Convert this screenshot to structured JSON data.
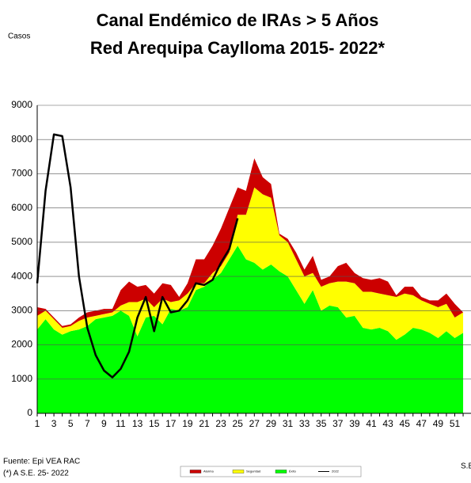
{
  "chart_data": {
    "type": "area",
    "title": [
      "Canal Endémico de IRAs > 5 Años",
      "Red Arequipa Caylloma 2015- 2022*"
    ],
    "y_label": "Casos",
    "x_label": "S.E",
    "source": "Fuente: Epi VEA RAC",
    "note": "(*) A S.E. 25- 2022",
    "categories": [
      1,
      null,
      3,
      null,
      5,
      null,
      7,
      null,
      9,
      null,
      11,
      null,
      13,
      null,
      15,
      null,
      17,
      null,
      19,
      null,
      21,
      null,
      23,
      null,
      25,
      null,
      27,
      null,
      29,
      null,
      31,
      null,
      33,
      null,
      35,
      null,
      37,
      null,
      39,
      null,
      41,
      null,
      43,
      null,
      45,
      null,
      47,
      null,
      49,
      null,
      51,
      null
    ],
    "ylim": [
      0,
      9000
    ],
    "yticks": [
      0,
      1000,
      2000,
      3000,
      4000,
      5000,
      6000,
      7000,
      8000,
      9000
    ],
    "grid": true,
    "series": [
      {
        "name": "Éxito",
        "color": "#00ff00",
        "stack": true,
        "values": [
          2450,
          2750,
          2450,
          2300,
          2400,
          2450,
          2550,
          2750,
          2800,
          2850,
          3000,
          2850,
          2250,
          2800,
          2850,
          2600,
          3050,
          3000,
          3100,
          3600,
          3700,
          3900,
          4100,
          4500,
          4900,
          4500,
          4400,
          4200,
          4350,
          4150,
          4000,
          3600,
          3200,
          3600,
          3000,
          3150,
          3100,
          2800,
          2850,
          2500,
          2450,
          2500,
          2400,
          2150,
          2300,
          2500,
          2450,
          2350,
          2200,
          2400,
          2200,
          2350
        ]
      },
      {
        "name": "Seguridad",
        "color": "#ffff00",
        "stack": true,
        "values": [
          400,
          250,
          300,
          200,
          150,
          250,
          250,
          100,
          100,
          100,
          150,
          400,
          1000,
          550,
          250,
          750,
          200,
          300,
          400,
          200,
          100,
          200,
          200,
          200,
          900,
          1300,
          2200,
          2200,
          1950,
          1050,
          1000,
          900,
          800,
          500,
          700,
          650,
          750,
          1050,
          950,
          1050,
          1100,
          1000,
          1050,
          1250,
          1200,
          950,
          850,
          850,
          900,
          800,
          600,
          600
        ]
      },
      {
        "name": "Alarma",
        "color": "#cc0000",
        "stack": true,
        "values": [
          250,
          50,
          50,
          50,
          50,
          100,
          150,
          150,
          150,
          100,
          450,
          600,
          450,
          400,
          400,
          450,
          500,
          100,
          300,
          700,
          700,
          800,
          1100,
          1300,
          800,
          700,
          850,
          500,
          400,
          50,
          100,
          200,
          200,
          500,
          200,
          200,
          450,
          550,
          300,
          400,
          350,
          450,
          400,
          50,
          200,
          250,
          100,
          100,
          200,
          300,
          400,
          0
        ]
      },
      {
        "name": "2022",
        "color": "#000000",
        "stack": false,
        "values": [
          3800,
          6500,
          8150,
          8100,
          6600,
          4000,
          2500,
          1700,
          1250,
          1050,
          1300,
          1800,
          2800,
          3400,
          2400,
          3400,
          2950,
          3000,
          3300,
          3800,
          3750,
          3900,
          4400,
          4800,
          5700,
          null,
          null,
          null,
          null,
          null,
          null,
          null,
          null,
          null,
          null,
          null,
          null,
          null,
          null,
          null,
          null,
          null,
          null,
          null,
          null,
          null,
          null,
          null,
          null,
          null,
          null,
          null
        ]
      }
    ]
  }
}
